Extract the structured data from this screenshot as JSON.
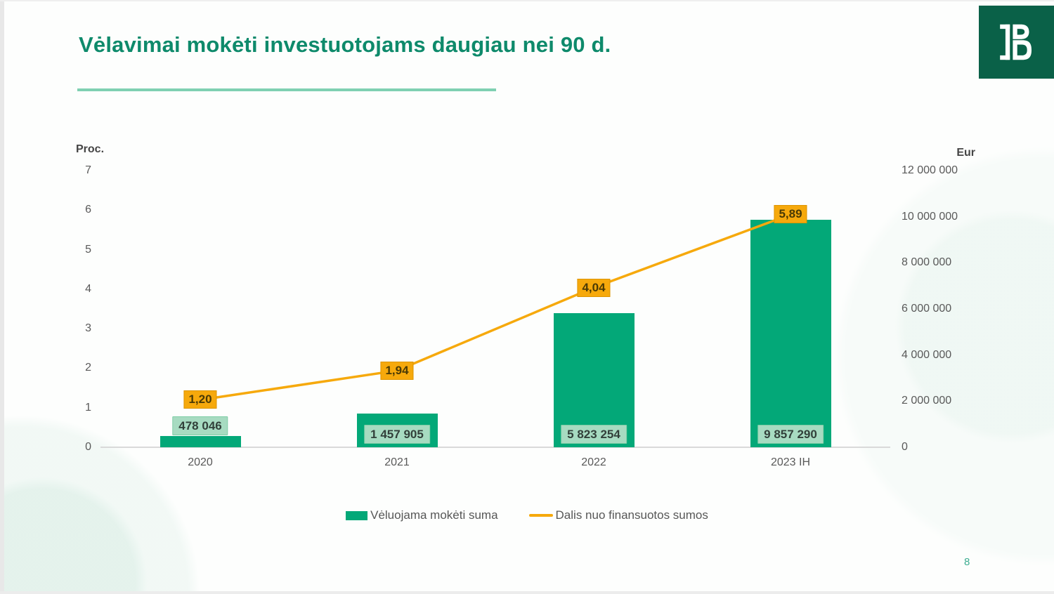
{
  "slide": {
    "title": "Vėlavimai mokėti investuotojams daugiau nei 90 d.",
    "page_number": "8"
  },
  "logo": {
    "name": "Lietuvos bankas monogram",
    "background": "#0a6148"
  },
  "chart_data": {
    "type": "bar+line combo",
    "categories": [
      "2020",
      "2021",
      "2022",
      "2023 IH"
    ],
    "series": [
      {
        "name": "Vėluojama mokėti suma",
        "type": "bar",
        "axis": "right",
        "values": [
          478046,
          1457905,
          5823254,
          9857290
        ],
        "data_labels": [
          "478 046",
          "1 457 905",
          "5 823 254",
          "9 857 290"
        ],
        "color": "#03a878",
        "label_bg": "#a7dbc1",
        "label_border": "#7fcda6"
      },
      {
        "name": "Dalis nuo finansuotos sumos",
        "type": "line",
        "axis": "left",
        "values": [
          1.2,
          1.94,
          4.04,
          5.89
        ],
        "data_labels": [
          "1,20",
          "1,94",
          "4,04",
          "5,89"
        ],
        "color": "#f6a90c",
        "label_bg": "#f6a90c",
        "label_border": "#dd9502"
      }
    ],
    "left_axis": {
      "title": "Proc.",
      "min": 0,
      "max": 7,
      "tick_step": 1,
      "tick_labels": [
        "0",
        "1",
        "2",
        "3",
        "4",
        "5",
        "6",
        "7"
      ]
    },
    "right_axis": {
      "title": "Eur",
      "min": 0,
      "max": 12000000,
      "tick_step": 2000000,
      "tick_labels": [
        "0",
        "2 000 000",
        "4 000 000",
        "6 000 000",
        "8 000 000",
        "10 000 000",
        "12 000 000"
      ]
    },
    "legend": {
      "position": "bottom",
      "entries": [
        {
          "label": "Vėluojama mokėti suma",
          "swatch": "bar",
          "color": "#03a878"
        },
        {
          "label": "Dalis nuo finansuotos sumos",
          "swatch": "line",
          "color": "#f6a90c"
        }
      ]
    },
    "grid": false
  }
}
